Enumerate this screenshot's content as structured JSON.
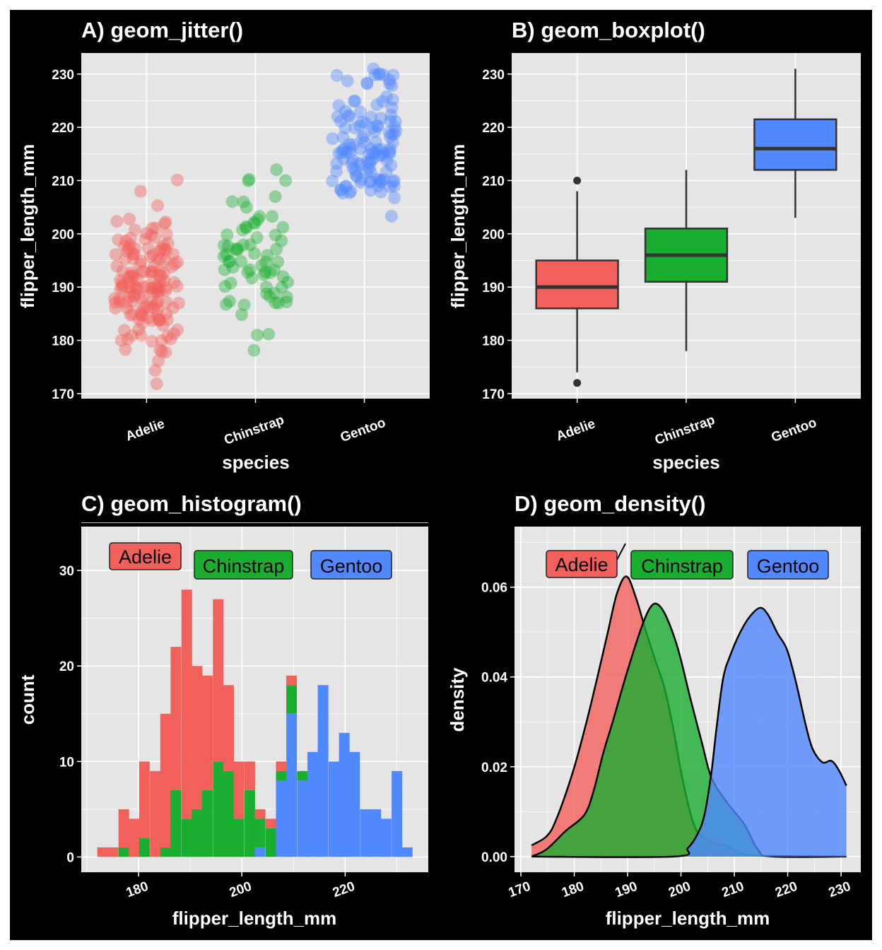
{
  "colors": {
    "Adelie": "#F2605B",
    "Chinstrap": "#19AE30",
    "Gentoo": "#5088FF",
    "panel_background": "#E5E5E5",
    "figure_background": "#000000"
  },
  "chart_data": [
    {
      "panel": "A",
      "type": "scatter",
      "geom": "jitter",
      "title": "A) geom_jitter()",
      "xlabel": "species",
      "ylabel": "flipper_length_mm",
      "categories": [
        "Adelie",
        "Chinstrap",
        "Gentoo"
      ],
      "yticks": [
        170,
        180,
        190,
        200,
        210,
        220,
        230
      ],
      "ylim": [
        169.05,
        233.95
      ],
      "grid": true,
      "point_alpha": 0.4,
      "values_with_counts": {
        "Adelie": [
          [
            172,
            1
          ],
          [
            174,
            1
          ],
          [
            176,
            1
          ],
          [
            178,
            4
          ],
          [
            180,
            5
          ],
          [
            181,
            4
          ],
          [
            182,
            3
          ],
          [
            183,
            2
          ],
          [
            184,
            7
          ],
          [
            185,
            7
          ],
          [
            186,
            8
          ],
          [
            187,
            9
          ],
          [
            188,
            6
          ],
          [
            189,
            7
          ],
          [
            190,
            16
          ],
          [
            191,
            7
          ],
          [
            192,
            7
          ],
          [
            193,
            8
          ],
          [
            194,
            5
          ],
          [
            195,
            7
          ],
          [
            196,
            6
          ],
          [
            197,
            8
          ],
          [
            198,
            4
          ],
          [
            199,
            5
          ],
          [
            200,
            3
          ],
          [
            201,
            3
          ],
          [
            202,
            3
          ],
          [
            203,
            1
          ],
          [
            205,
            1
          ],
          [
            208,
            1
          ],
          [
            210,
            1
          ]
        ],
        "Chinstrap": [
          [
            178,
            1
          ],
          [
            181,
            2
          ],
          [
            185,
            1
          ],
          [
            187,
            6
          ],
          [
            188,
            2
          ],
          [
            189,
            2
          ],
          [
            190,
            3
          ],
          [
            191,
            2
          ],
          [
            192,
            3
          ],
          [
            193,
            6
          ],
          [
            194,
            2
          ],
          [
            195,
            5
          ],
          [
            196,
            4
          ],
          [
            197,
            4
          ],
          [
            198,
            4
          ],
          [
            199,
            2
          ],
          [
            200,
            2
          ],
          [
            201,
            4
          ],
          [
            202,
            2
          ],
          [
            203,
            3
          ],
          [
            205,
            1
          ],
          [
            206,
            2
          ],
          [
            207,
            1
          ],
          [
            210,
            3
          ],
          [
            212,
            1
          ]
        ],
        "Gentoo": [
          [
            203,
            1
          ],
          [
            207,
            1
          ],
          [
            208,
            7
          ],
          [
            209,
            5
          ],
          [
            210,
            12
          ],
          [
            211,
            2
          ],
          [
            212,
            7
          ],
          [
            213,
            6
          ],
          [
            214,
            6
          ],
          [
            215,
            12
          ],
          [
            216,
            8
          ],
          [
            217,
            5
          ],
          [
            218,
            5
          ],
          [
            219,
            5
          ],
          [
            220,
            7
          ],
          [
            221,
            5
          ],
          [
            222,
            6
          ],
          [
            223,
            2
          ],
          [
            224,
            3
          ],
          [
            225,
            4
          ],
          [
            226,
            1
          ],
          [
            228,
            4
          ],
          [
            229,
            2
          ],
          [
            230,
            6
          ],
          [
            231,
            1
          ]
        ]
      }
    },
    {
      "panel": "B",
      "type": "boxplot",
      "title": "B) geom_boxplot()",
      "xlabel": "species",
      "ylabel": "flipper_length_mm",
      "categories": [
        "Adelie",
        "Chinstrap",
        "Gentoo"
      ],
      "yticks": [
        170,
        180,
        190,
        200,
        210,
        220,
        230
      ],
      "ylim": [
        169.05,
        233.95
      ],
      "grid": true,
      "boxes": [
        {
          "species": "Adelie",
          "lower": 174,
          "q1": 186,
          "median": 190,
          "q3": 195,
          "upper": 208,
          "outliers": [
            210,
            172
          ]
        },
        {
          "species": "Chinstrap",
          "lower": 178,
          "q1": 191,
          "median": 196,
          "q3": 201,
          "upper": 212,
          "outliers": []
        },
        {
          "species": "Gentoo",
          "lower": 203,
          "q1": 212,
          "median": 216,
          "q3": 221.5,
          "upper": 231,
          "outliers": []
        }
      ]
    },
    {
      "panel": "C",
      "type": "bar",
      "geom": "histogram",
      "stacked": true,
      "title": "C) geom_histogram()",
      "xlabel": "flipper_length_mm",
      "ylabel": "count",
      "xticks": [
        180,
        200,
        220
      ],
      "yticks": [
        0,
        10,
        20,
        30
      ],
      "xlim": [
        168.9,
        236.1
      ],
      "ylim": [
        -1.6,
        34.6
      ],
      "grid": true,
      "legend": "inside-top (labels)",
      "bin_centers": [
        173.0,
        175.0,
        177.1,
        179.1,
        181.1,
        183.2,
        185.2,
        187.2,
        189.3,
        191.3,
        193.3,
        195.4,
        197.4,
        199.4,
        201.5,
        203.5,
        205.6,
        207.6,
        209.6,
        211.7,
        213.7,
        215.7,
        217.8,
        219.8,
        221.8,
        223.9,
        225.9,
        227.9,
        230.0,
        232.0
      ],
      "series": [
        {
          "name": "Adelie",
          "values": [
            1,
            1,
            4,
            4,
            8,
            9,
            14,
            15,
            24,
            15,
            12,
            17,
            9,
            6,
            3,
            1,
            1,
            1,
            1,
            0,
            0,
            0,
            0,
            0,
            0,
            0,
            0,
            0,
            0,
            0
          ]
        },
        {
          "name": "Chinstrap",
          "values": [
            0,
            0,
            1,
            0,
            2,
            0,
            1,
            7,
            4,
            5,
            7,
            10,
            9,
            4,
            7,
            3,
            3,
            1,
            3,
            1,
            0,
            0,
            0,
            0,
            0,
            0,
            0,
            0,
            0,
            0
          ]
        },
        {
          "name": "Gentoo",
          "values": [
            0,
            0,
            0,
            0,
            0,
            0,
            0,
            0,
            0,
            0,
            0,
            0,
            0,
            0,
            0,
            1,
            0,
            8,
            15,
            8,
            11,
            18,
            10,
            13,
            11,
            5,
            5,
            4,
            9,
            1
          ]
        }
      ]
    },
    {
      "panel": "D",
      "type": "area",
      "geom": "density",
      "title": "D) geom_density()",
      "xlabel": "flipper_length_mm",
      "ylabel": "density",
      "xticks": [
        170,
        180,
        190,
        200,
        210,
        220,
        230
      ],
      "yticks": [
        0.0,
        0.02,
        0.04,
        0.06
      ],
      "ytick_labels": [
        "0.00",
        "0.02",
        "0.04",
        "0.06"
      ],
      "xlim": [
        168.8,
        233.7
      ],
      "ylim": [
        -0.0035,
        0.0735
      ],
      "grid": true,
      "fill_alpha": 0.8,
      "legend": "inside-top (labels)",
      "series": [
        {
          "name": "Adelie",
          "x": [
            172,
            174.8,
            176.6,
            179.7,
            182.3,
            184.5,
            186.3,
            188,
            189.8,
            191.6,
            193.3,
            195.1,
            196.9,
            198.6,
            200.4,
            202.6,
            205.2,
            208.4,
            211,
            214.5,
            231
          ],
          "y": [
            0.0025,
            0.0045,
            0.0082,
            0.0187,
            0.03,
            0.0408,
            0.05,
            0.0586,
            0.0624,
            0.0575,
            0.0507,
            0.044,
            0.0376,
            0.0282,
            0.0166,
            0.0066,
            0.0035,
            0.0024,
            0.0008,
            0.0002,
            0
          ]
        },
        {
          "name": "Chinstrap",
          "x": [
            172,
            174.8,
            178.3,
            181.9,
            183.6,
            185.4,
            187.2,
            189.8,
            192.5,
            194.2,
            195.6,
            197.3,
            199.5,
            201.7,
            204,
            205.7,
            208.4,
            211.9,
            214.5,
            217.2,
            231
          ],
          "y": [
            0,
            0.0016,
            0.0056,
            0.0093,
            0.0145,
            0.0229,
            0.03,
            0.0407,
            0.0507,
            0.0554,
            0.0562,
            0.0533,
            0.046,
            0.0355,
            0.025,
            0.0176,
            0.0124,
            0.0071,
            0.0014,
            0,
            0
          ]
        },
        {
          "name": "Gentoo",
          "x": [
            172,
            198.7,
            201.3,
            203.1,
            204.4,
            205.7,
            206.6,
            207.9,
            209.3,
            211,
            212.8,
            214.8,
            216.3,
            218.1,
            219.9,
            221.6,
            223.4,
            224.7,
            226.5,
            228.2,
            229.6,
            231
          ],
          "y": [
            0,
            0,
            0.0019,
            0.005,
            0.0093,
            0.0187,
            0.028,
            0.0397,
            0.045,
            0.0497,
            0.0533,
            0.0554,
            0.0539,
            0.0497,
            0.046,
            0.0386,
            0.0292,
            0.0239,
            0.021,
            0.0213,
            0.0192,
            0.0158
          ]
        }
      ]
    }
  ]
}
